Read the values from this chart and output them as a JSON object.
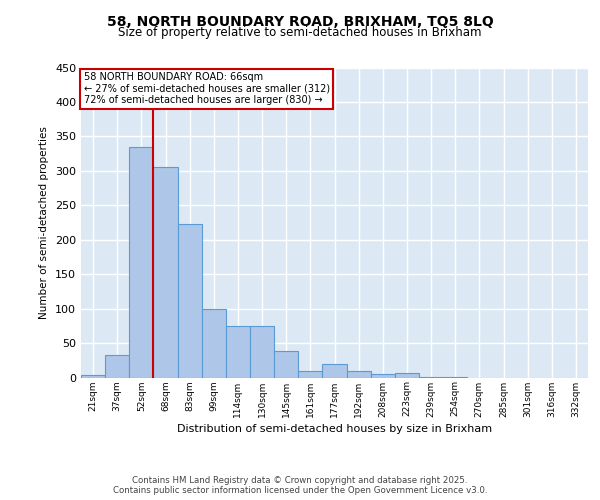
{
  "title_line1": "58, NORTH BOUNDARY ROAD, BRIXHAM, TQ5 8LQ",
  "title_line2": "Size of property relative to semi-detached houses in Brixham",
  "xlabel": "Distribution of semi-detached houses by size in Brixham",
  "ylabel": "Number of semi-detached properties",
  "categories": [
    "21sqm",
    "37sqm",
    "52sqm",
    "68sqm",
    "83sqm",
    "99sqm",
    "114sqm",
    "130sqm",
    "145sqm",
    "161sqm",
    "177sqm",
    "192sqm",
    "208sqm",
    "223sqm",
    "239sqm",
    "254sqm",
    "270sqm",
    "285sqm",
    "301sqm",
    "316sqm",
    "332sqm"
  ],
  "values": [
    4,
    33,
    335,
    305,
    223,
    100,
    75,
    75,
    38,
    10,
    20,
    10,
    5,
    6,
    1,
    1,
    0,
    0,
    0,
    0,
    0
  ],
  "bar_color": "#aec6e8",
  "bar_edge_color": "#5b9bd5",
  "vline_color": "#cc0000",
  "vline_x_idx": 2,
  "annotation_title": "58 NORTH BOUNDARY ROAD: 66sqm",
  "annotation_line2": "← 27% of semi-detached houses are smaller (312)",
  "annotation_line3": "72% of semi-detached houses are larger (830) →",
  "ylim": [
    0,
    450
  ],
  "yticks": [
    0,
    50,
    100,
    150,
    200,
    250,
    300,
    350,
    400,
    450
  ],
  "bg_color": "#dce9f5",
  "grid_color": "#ffffff",
  "footer_line1": "Contains HM Land Registry data © Crown copyright and database right 2025.",
  "footer_line2": "Contains public sector information licensed under the Open Government Licence v3.0."
}
